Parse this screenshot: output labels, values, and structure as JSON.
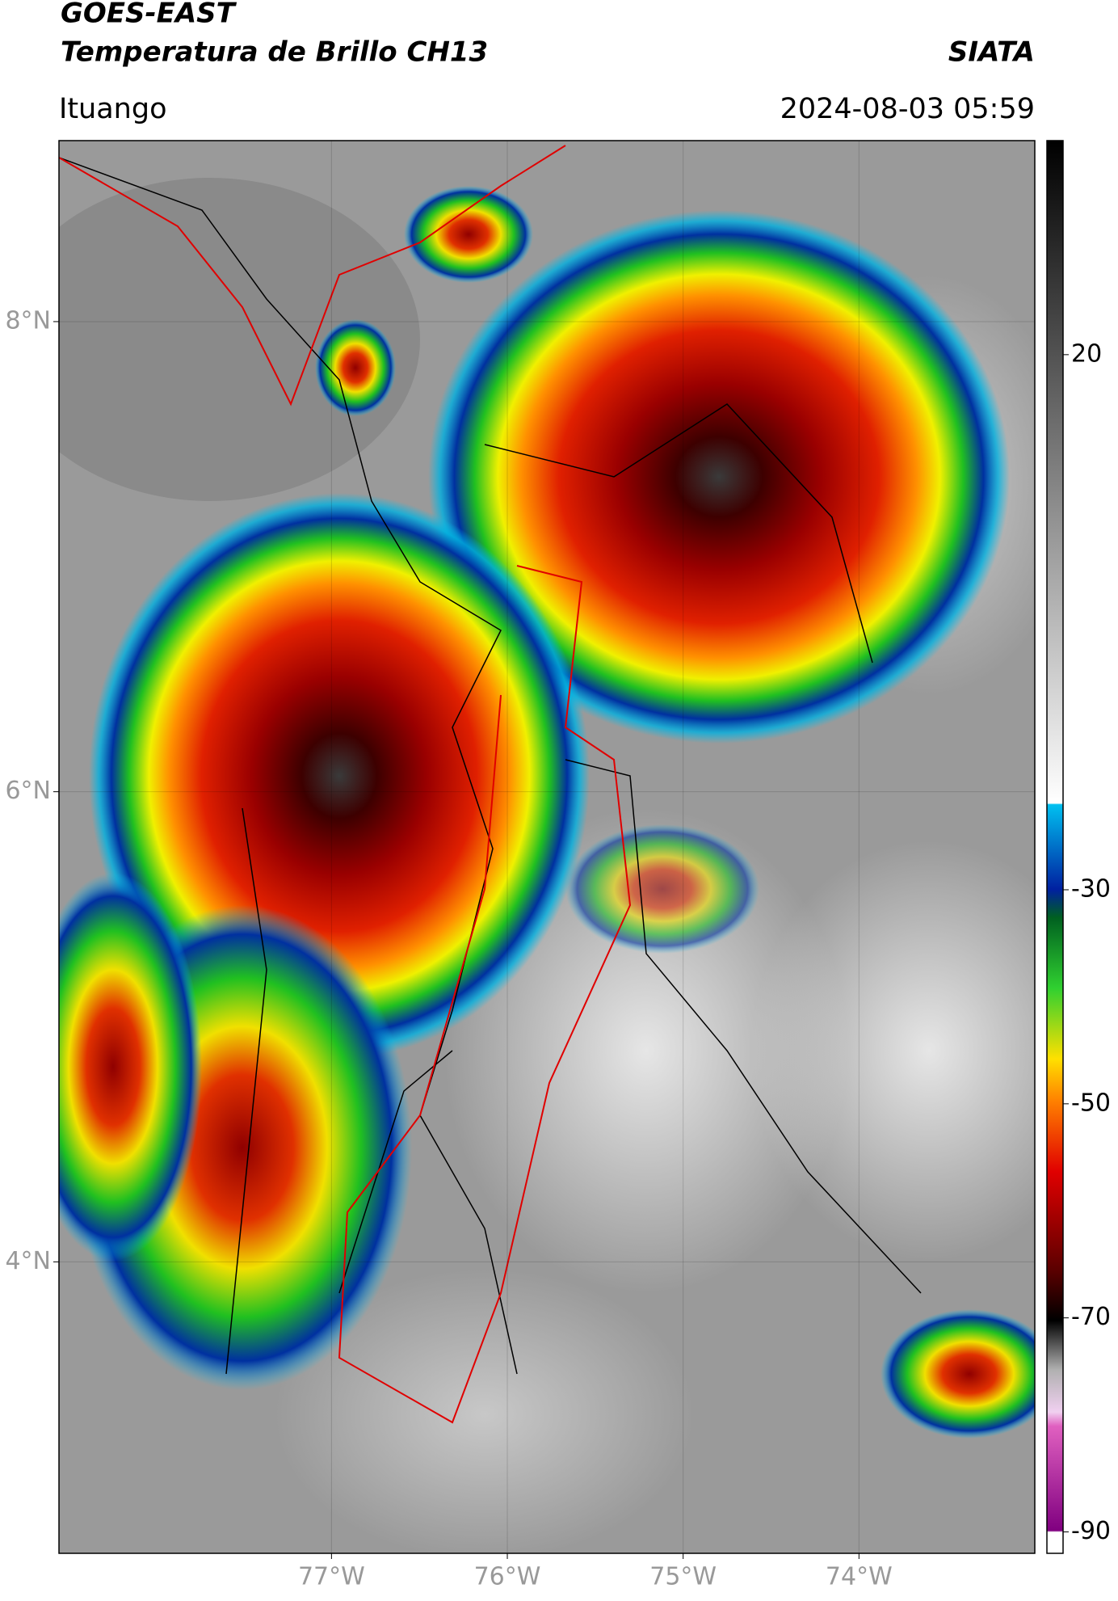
{
  "header": {
    "title_line1": "GOES-EAST",
    "title_line2": "Temperatura de Brillo CH13",
    "source": "SIATA",
    "location": "Ituango",
    "datetime": "2024-08-03 05:59"
  },
  "map": {
    "lat_range": [
      2.76,
      8.77
    ],
    "lon_range": [
      -78.55,
      -73.0
    ],
    "lat_ticks": [
      {
        "value": 8,
        "label": "8°N"
      },
      {
        "value": 6,
        "label": "6°N"
      },
      {
        "value": 4,
        "label": "4°N"
      }
    ],
    "lon_ticks": [
      {
        "value": -77,
        "label": "77°W"
      },
      {
        "value": -76,
        "label": "76°W"
      },
      {
        "value": -75,
        "label": "75°W"
      },
      {
        "value": -74,
        "label": "74°W"
      }
    ],
    "grid": true
  },
  "colorbar": {
    "range": [
      -92,
      40
    ],
    "ticks": [
      20,
      -30,
      -50,
      -70,
      -90
    ]
  }
}
